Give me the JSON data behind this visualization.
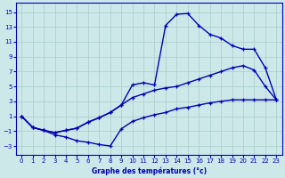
{
  "xlabel": "Graphe des températures (°c)",
  "background_color": "#cce8e8",
  "grid_color": "#aacccc",
  "line_color": "#0000bb",
  "xlim": [
    -0.5,
    23.5
  ],
  "ylim": [
    -4.2,
    16.2
  ],
  "xticks": [
    0,
    1,
    2,
    3,
    4,
    5,
    6,
    7,
    8,
    9,
    10,
    11,
    12,
    13,
    14,
    15,
    16,
    17,
    18,
    19,
    20,
    21,
    22,
    23
  ],
  "yticks": [
    -3,
    -1,
    1,
    3,
    5,
    7,
    9,
    11,
    13,
    15
  ],
  "line_peak_x": [
    0,
    1,
    2,
    3,
    4,
    5,
    6,
    7,
    8,
    9,
    10,
    11,
    12,
    13,
    14,
    15,
    16,
    17,
    18,
    19,
    20,
    21,
    22,
    23
  ],
  "line_peak_y": [
    1.0,
    -0.5,
    -0.9,
    -1.2,
    -0.9,
    -0.6,
    0.2,
    0.8,
    1.5,
    2.5,
    5.2,
    5.5,
    5.2,
    13.2,
    14.7,
    14.8,
    13.2,
    12.0,
    11.5,
    10.5,
    10.0,
    10.0,
    7.5,
    3.2
  ],
  "line_mid_x": [
    0,
    1,
    2,
    3,
    4,
    5,
    6,
    7,
    8,
    9,
    10,
    11,
    12,
    13,
    14,
    15,
    16,
    17,
    18,
    19,
    20,
    21,
    22,
    23
  ],
  "line_mid_y": [
    1.0,
    -0.5,
    -0.9,
    -1.2,
    -0.9,
    -0.6,
    0.2,
    0.8,
    1.5,
    2.5,
    3.5,
    4.0,
    4.5,
    4.8,
    5.0,
    5.5,
    6.0,
    6.5,
    7.0,
    7.5,
    7.8,
    7.2,
    5.0,
    3.2
  ],
  "line_low_x": [
    0,
    1,
    2,
    3,
    4,
    5,
    6,
    7,
    8,
    9,
    10,
    11,
    12,
    13,
    14,
    15,
    16,
    17,
    18,
    19,
    20,
    21,
    22,
    23
  ],
  "line_low_y": [
    1.0,
    -0.5,
    -0.9,
    -1.5,
    -1.8,
    -2.3,
    -2.5,
    -2.8,
    -3.0,
    -0.7,
    0.3,
    0.8,
    1.2,
    1.5,
    2.0,
    2.2,
    2.5,
    2.8,
    3.0,
    3.2,
    3.2,
    3.2,
    3.2,
    3.2
  ]
}
